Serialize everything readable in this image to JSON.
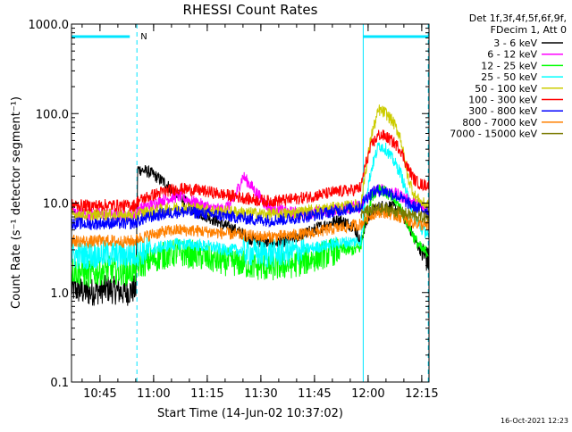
{
  "chart_data": {
    "type": "line",
    "title": "RHESSI Count Rates",
    "xlabel": "Start Time (14-Jun-02 10:37:02)",
    "ylabel": "Count Rate (s⁻¹ detector segment⁻¹)",
    "yscale": "log",
    "ylim": [
      0.1,
      1000.0
    ],
    "xlim_minutes": [
      0,
      100
    ],
    "x_unit": "minutes since 10:37:02",
    "grid": false,
    "legend_position": "top-right, outside plot",
    "legend_header": [
      "Det 1f,3f,4f,5f,6f,9f,",
      "FDecim 1, Att 0"
    ],
    "x_ticks": [
      {
        "label": "10:45",
        "value": 7.97
      },
      {
        "label": "11:00",
        "value": 22.97
      },
      {
        "label": "11:15",
        "value": 37.97
      },
      {
        "label": "11:30",
        "value": 52.97
      },
      {
        "label": "11:45",
        "value": 67.97
      },
      {
        "label": "12:00",
        "value": 82.97
      },
      {
        "label": "12:15",
        "value": 97.97
      }
    ],
    "y_ticks": [
      {
        "label": "0.1",
        "value": 0.1
      },
      {
        "label": "1.0",
        "value": 1.0
      },
      {
        "label": "10.0",
        "value": 10.0
      },
      {
        "label": "100.0",
        "value": 100.0
      },
      {
        "label": "1000.0",
        "value": 1000.0
      }
    ],
    "intervals": [
      {
        "label": "N",
        "start": 0,
        "end": 18.3
      },
      {
        "label": "",
        "start": 81.6,
        "end": 99.8
      }
    ],
    "x": [
      0,
      5,
      10,
      15,
      18,
      18.5,
      22,
      26,
      30,
      35,
      40,
      42,
      45,
      48,
      50,
      55,
      60,
      65,
      70,
      75,
      79,
      81,
      82,
      84,
      86,
      88,
      90,
      92,
      94,
      96,
      98,
      100
    ],
    "series": [
      {
        "name": "3 - 6 keV",
        "color": "#000000",
        "values": [
          1.1,
          1.0,
          1.1,
          1.0,
          1.1,
          24,
          22,
          17,
          12,
          8,
          6.5,
          5.8,
          5.2,
          4.5,
          4,
          3.5,
          3.8,
          4.5,
          5.5,
          6.5,
          5.5,
          3.5,
          5.5,
          8,
          9,
          9.5,
          9,
          8,
          6,
          4,
          2.8,
          2.2
        ]
      },
      {
        "name": "6 - 12 keV",
        "color": "#ff00ff",
        "values": [
          8,
          7.5,
          7.5,
          7.2,
          7.5,
          8.5,
          9.5,
          11,
          12,
          10,
          8.5,
          8.5,
          10,
          20,
          16,
          9,
          8,
          7.5,
          8,
          8.5,
          9,
          9,
          11,
          13,
          14,
          14,
          13,
          12,
          11,
          10,
          9,
          8
        ]
      },
      {
        "name": "12 - 25 keV",
        "color": "#00ff00",
        "values": [
          1.8,
          1.6,
          1.8,
          1.7,
          1.8,
          2.0,
          2.3,
          2.6,
          2.8,
          2.6,
          2.3,
          2.2,
          2.2,
          2.1,
          2.0,
          1.9,
          2.0,
          2.2,
          2.6,
          3.0,
          3.0,
          3.2,
          6,
          12,
          15,
          13,
          11,
          9,
          6,
          4,
          3,
          2.8
        ]
      },
      {
        "name": "25 - 50 keV",
        "color": "#00ffff",
        "values": [
          2.6,
          2.6,
          2.7,
          2.6,
          2.7,
          2.8,
          3.0,
          3.3,
          3.5,
          3.4,
          3.2,
          3.0,
          3.0,
          2.9,
          2.8,
          2.7,
          2.8,
          3.0,
          3.3,
          3.6,
          3.7,
          3.8,
          10,
          25,
          45,
          40,
          30,
          22,
          12,
          7,
          5,
          4.5
        ]
      },
      {
        "name": "50 - 100 keV",
        "color": "#cccc00",
        "values": [
          7.5,
          7.3,
          7.4,
          7.2,
          7.4,
          7.6,
          8.0,
          8.5,
          9.0,
          8.7,
          8.2,
          8.0,
          8.0,
          7.8,
          7.7,
          7.5,
          7.6,
          8.0,
          8.5,
          9.0,
          9.3,
          9.5,
          20,
          60,
          110,
          100,
          80,
          55,
          20,
          12,
          10,
          9.5
        ]
      },
      {
        "name": "100 - 300 keV",
        "color": "#ff0000",
        "values": [
          9.5,
          9.3,
          9.5,
          9.3,
          9.5,
          10.5,
          12,
          13.5,
          14.5,
          14,
          13,
          12.5,
          12,
          11.5,
          11,
          10.5,
          10.8,
          11.5,
          12.5,
          13.5,
          14,
          15,
          25,
          45,
          58,
          55,
          48,
          40,
          25,
          18,
          16,
          16
        ]
      },
      {
        "name": "300 - 800 keV",
        "color": "#0000ff",
        "values": [
          6.0,
          5.8,
          6.0,
          5.9,
          6.0,
          6.3,
          7.0,
          7.6,
          8.0,
          7.8,
          7.4,
          7.2,
          7.0,
          6.8,
          6.6,
          6.4,
          6.6,
          7.0,
          7.6,
          8.3,
          8.8,
          9.2,
          11,
          13,
          14,
          13.5,
          12.5,
          11.5,
          10,
          9,
          8.5,
          8
        ]
      },
      {
        "name": "800 - 7000 keV",
        "color": "#ff8000",
        "values": [
          3.8,
          3.7,
          3.8,
          3.7,
          3.8,
          4.0,
          4.4,
          4.8,
          5.0,
          4.9,
          4.7,
          4.6,
          4.5,
          4.4,
          4.3,
          4.2,
          4.3,
          4.5,
          4.9,
          5.3,
          5.6,
          5.8,
          6.5,
          7.5,
          8.0,
          7.8,
          7.4,
          7.0,
          6.4,
          6.0,
          5.7,
          5.5
        ]
      },
      {
        "name": "7000 - 15000 keV",
        "color": "#7a7a00",
        "values": [
          null,
          null,
          null,
          null,
          null,
          null,
          null,
          null,
          null,
          null,
          null,
          null,
          null,
          null,
          null,
          null,
          null,
          null,
          null,
          null,
          null,
          7.5,
          8.0,
          8.4,
          8.6,
          8.5,
          8.2,
          7.9,
          7.5,
          7.2,
          7.0,
          6.8
        ]
      }
    ],
    "colors": {
      "interval": "#00e5ff",
      "axis": "#000000"
    }
  },
  "timestamp": "16-Oct-2021 12:23"
}
